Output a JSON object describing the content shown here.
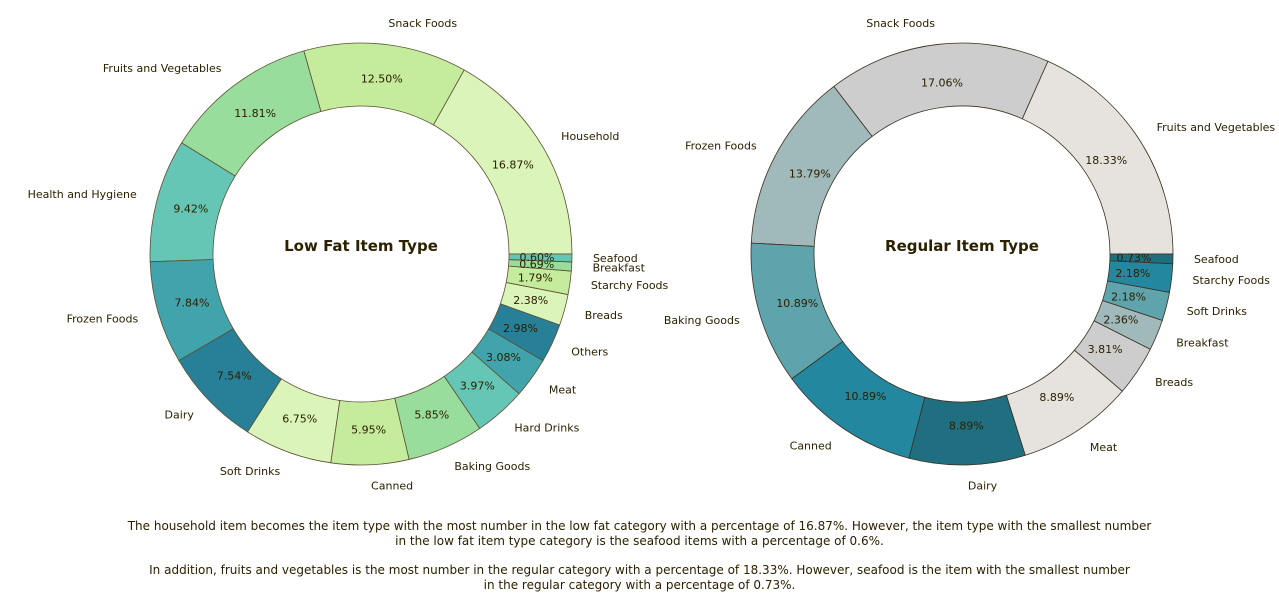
{
  "chart_data": [
    {
      "type": "pie",
      "donut": true,
      "title": "Low Fat Item Type",
      "start_angle_deg": 0,
      "direction": "counterclockwise",
      "edge_color": "#5a5030",
      "slices": [
        {
          "label": "Household",
          "value": 16.87,
          "pct_label": "16.87%",
          "color": "#daf4b9"
        },
        {
          "label": "Snack Foods",
          "value": 12.5,
          "pct_label": "12.50%",
          "color": "#c5eb9c"
        },
        {
          "label": "Fruits and Vegetables",
          "value": 11.81,
          "pct_label": "11.81%",
          "color": "#98dd9c"
        },
        {
          "label": "Health and Hygiene",
          "value": 9.42,
          "pct_label": "9.42%",
          "color": "#66c6b5"
        },
        {
          "label": "Frozen Foods",
          "value": 7.84,
          "pct_label": "7.84%",
          "color": "#41a4ad"
        },
        {
          "label": "Dairy",
          "value": 7.54,
          "pct_label": "7.54%",
          "color": "#277f98"
        },
        {
          "label": "Soft Drinks",
          "value": 6.75,
          "pct_label": "6.75%",
          "color": "#daf4b9"
        },
        {
          "label": "Canned",
          "value": 5.95,
          "pct_label": "5.95%",
          "color": "#c5eb9c"
        },
        {
          "label": "Baking Goods",
          "value": 5.85,
          "pct_label": "5.85%",
          "color": "#98dd9c"
        },
        {
          "label": "Hard Drinks",
          "value": 3.97,
          "pct_label": "3.97%",
          "color": "#66c6b5"
        },
        {
          "label": "Meat",
          "value": 3.08,
          "pct_label": "3.08%",
          "color": "#41a4ad"
        },
        {
          "label": "Others",
          "value": 2.98,
          "pct_label": "2.98%",
          "color": "#277f98"
        },
        {
          "label": "Breads",
          "value": 2.38,
          "pct_label": "2.38%",
          "color": "#daf4b9"
        },
        {
          "label": "Starchy Foods",
          "value": 1.79,
          "pct_label": "1.79%",
          "color": "#c5eb9c"
        },
        {
          "label": "Breakfast",
          "value": 0.69,
          "pct_label": "0.69%",
          "color": "#98dd9c"
        },
        {
          "label": "Seafood",
          "value": 0.6,
          "pct_label": "0.60%",
          "color": "#66c6b5"
        }
      ]
    },
    {
      "type": "pie",
      "donut": true,
      "title": "Regular Item Type",
      "start_angle_deg": 0,
      "direction": "counterclockwise",
      "edge_color": "#3a3020",
      "slices": [
        {
          "label": "Fruits and Vegetables",
          "value": 18.33,
          "pct_label": "18.33%",
          "color": "#e6e3de"
        },
        {
          "label": "Snack Foods",
          "value": 17.06,
          "pct_label": "17.06%",
          "color": "#cdcdcd"
        },
        {
          "label": "Frozen Foods",
          "value": 13.79,
          "pct_label": "13.79%",
          "color": "#a0b9bb"
        },
        {
          "label": "Baking Goods",
          "value": 10.89,
          "pct_label": "10.89%",
          "color": "#5fa4ad"
        },
        {
          "label": "Canned",
          "value": 10.89,
          "pct_label": "10.89%",
          "color": "#23879f"
        },
        {
          "label": "Dairy",
          "value": 8.89,
          "pct_label": "8.89%",
          "color": "#1f6f80"
        },
        {
          "label": "Meat",
          "value": 8.89,
          "pct_label": "8.89%",
          "color": "#e6e3de"
        },
        {
          "label": "Breads",
          "value": 3.81,
          "pct_label": "3.81%",
          "color": "#cdcdcd"
        },
        {
          "label": "Breakfast",
          "value": 2.36,
          "pct_label": "2.36%",
          "color": "#a0b9bb"
        },
        {
          "label": "Soft Drinks",
          "value": 2.18,
          "pct_label": "2.18%",
          "color": "#5fa4ad"
        },
        {
          "label": "Starchy Foods",
          "value": 2.18,
          "pct_label": "2.18%",
          "color": "#23879f"
        },
        {
          "label": "Seafood",
          "value": 0.73,
          "pct_label": "0.73%",
          "color": "#1f6f80"
        }
      ]
    }
  ],
  "captions": {
    "paragraph1_line1": "The household item becomes the item type with the most number in the low fat category with a percentage of 16.87%. However, the item type with the smallest number",
    "paragraph1_line2": "in the low fat item type category is the seafood items with a percentage of 0.6%.",
    "paragraph2_line1": "In addition, fruits and vegetables is the most number in the regular category with a percentage of 18.33%. However, seafood is the item with the smallest number",
    "paragraph2_line2": "in the regular category with a percentage of 0.73%."
  }
}
